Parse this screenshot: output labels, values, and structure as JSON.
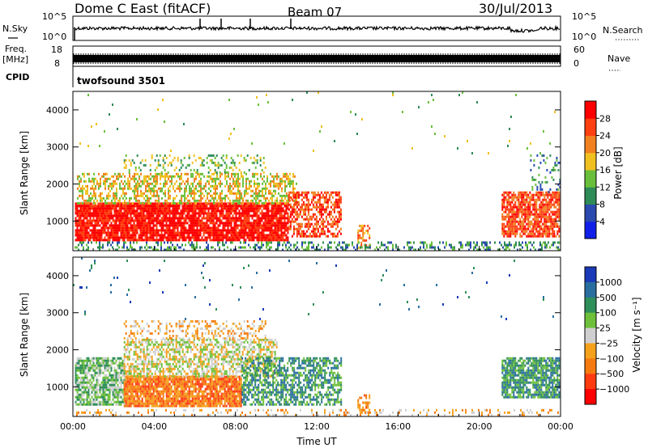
{
  "header": {
    "station": "Dome C East (fitACF)",
    "beam": "Beam 07",
    "date": "30/Jul/2013"
  },
  "noise_panel": {
    "left_label": "N.Sky",
    "left_ticks": [
      "10^5",
      "10^0"
    ],
    "right_label": "N.Search",
    "right_ticks": [
      "10^5",
      "10^0"
    ]
  },
  "freq_panel": {
    "left_label_1": "Freq.",
    "left_label_2": "[MHz]",
    "left_ticks": [
      "18",
      "8"
    ],
    "right_label": "Nave",
    "right_ticks": [
      "60",
      "0"
    ]
  },
  "cpid": {
    "label": "CPID",
    "value": "twofsound 3501"
  },
  "colors": {
    "power_scale": [
      "#1020e8",
      "#2a4ab0",
      "#2e8b57",
      "#6abf3a",
      "#f0c020",
      "#f08020",
      "#ff4010",
      "#ff0000"
    ],
    "velocity_scale": [
      "#1a3ab8",
      "#2a6ea0",
      "#2f8f5a",
      "#6ec03a",
      "#cfcfcf",
      "#f5a11c",
      "#f57a10",
      "#ff3b10",
      "#ff0000"
    ]
  },
  "chart_data": [
    {
      "type": "heatmap",
      "title": "",
      "xlabel": "",
      "ylabel": "Slant Range [km]",
      "x_ticks": [
        "00:00",
        "04:00",
        "08:00",
        "12:00",
        "16:00",
        "20:00",
        "00:00"
      ],
      "y_ticks": [
        "1000",
        "2000",
        "3000",
        "4000"
      ],
      "ylim": [
        200,
        4500
      ],
      "xlim_hours": [
        0,
        24
      ],
      "colorbar": {
        "label": "Power [dB]",
        "ticks": [
          "4",
          "8",
          "12",
          "16",
          "20",
          "24",
          "28"
        ],
        "range": [
          0,
          32
        ]
      },
      "scatter_regions": [
        {
          "t0": 0.1,
          "t1": 10.6,
          "r0": 500,
          "r1": 1500,
          "level": 7,
          "density": 0.9
        },
        {
          "t0": 0.2,
          "t1": 11.0,
          "r0": 1500,
          "r1": 2300,
          "level": 4,
          "density": 0.5
        },
        {
          "t0": 2.5,
          "t1": 9.5,
          "r0": 2300,
          "r1": 2800,
          "level": 3,
          "density": 0.25
        },
        {
          "t0": 10.6,
          "t1": 13.2,
          "r0": 600,
          "r1": 1800,
          "level": 6,
          "density": 0.6
        },
        {
          "t0": 14.0,
          "t1": 14.6,
          "r0": 300,
          "r1": 900,
          "level": 5,
          "density": 0.5
        },
        {
          "t0": 0.0,
          "t1": 24.0,
          "r0": 220,
          "r1": 450,
          "level": 2,
          "density": 0.35
        },
        {
          "t0": 21.1,
          "t1": 23.9,
          "r0": 600,
          "r1": 1800,
          "level": 6,
          "density": 0.8
        },
        {
          "t0": 22.5,
          "t1": 24.0,
          "r0": 1800,
          "r1": 2800,
          "level": 2,
          "density": 0.2
        },
        {
          "t0": 0.0,
          "t1": 24.0,
          "r0": 2800,
          "r1": 4500,
          "level": 3,
          "density": 0.01
        }
      ]
    },
    {
      "type": "heatmap",
      "title": "",
      "xlabel": "Time UT",
      "ylabel": "Slant Range [km]",
      "x_ticks": [
        "00:00",
        "04:00",
        "08:00",
        "12:00",
        "16:00",
        "20:00",
        "00:00"
      ],
      "y_ticks": [
        "1000",
        "2000",
        "3000",
        "4000"
      ],
      "ylim": [
        200,
        4500
      ],
      "xlim_hours": [
        0,
        24
      ],
      "colorbar": {
        "label": "Velocity [m s⁻¹]",
        "ticks": [
          "1000",
          "500",
          "100",
          "25",
          "−25",
          "−100",
          "−500",
          "−1000"
        ]
      },
      "scatter_regions": [
        {
          "t0": 0.1,
          "t1": 2.5,
          "r0": 500,
          "r1": 1800,
          "level": 3,
          "density": 0.8
        },
        {
          "t0": 2.5,
          "t1": 8.3,
          "r0": 500,
          "r1": 1300,
          "level": 6,
          "density": 0.9
        },
        {
          "t0": 2.5,
          "t1": 10.0,
          "r0": 1300,
          "r1": 2300,
          "level": 4,
          "density": 0.6
        },
        {
          "t0": 2.5,
          "t1": 9.5,
          "r0": 2300,
          "r1": 2800,
          "level": 5,
          "density": 0.3
        },
        {
          "t0": 8.3,
          "t1": 13.2,
          "r0": 500,
          "r1": 1800,
          "level": 2,
          "density": 0.6
        },
        {
          "t0": 14.0,
          "t1": 14.6,
          "r0": 300,
          "r1": 800,
          "level": 6,
          "density": 0.5
        },
        {
          "t0": 0.0,
          "t1": 24.0,
          "r0": 220,
          "r1": 400,
          "level": 5,
          "density": 0.2
        },
        {
          "t0": 21.1,
          "t1": 23.9,
          "r0": 700,
          "r1": 1800,
          "level": 2,
          "density": 0.8
        },
        {
          "t0": 0.0,
          "t1": 24.0,
          "r0": 2800,
          "r1": 4500,
          "level": 1,
          "density": 0.01
        }
      ]
    }
  ]
}
